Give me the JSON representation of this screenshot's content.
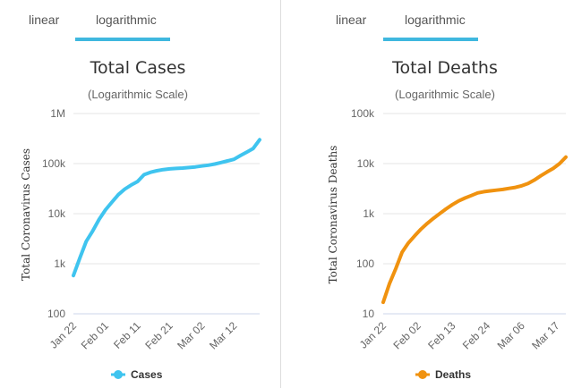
{
  "charts": [
    {
      "id": "cases",
      "tabs": [
        "linear",
        "logarithmic"
      ],
      "active_tab": 1,
      "legend_label": "Cases",
      "color": "#3fc4ef"
    },
    {
      "id": "deaths",
      "tabs": [
        "linear",
        "logarithmic"
      ],
      "active_tab": 1,
      "legend_label": "Deaths",
      "color": "#f0920f"
    }
  ],
  "chart_data": [
    {
      "type": "line",
      "title": "Total Cases",
      "subtitle": "(Logarithmic Scale)",
      "ylabel": "Total Coronavirus Cases",
      "xlabel": "",
      "yscale": "log",
      "ylim": [
        100,
        1000000
      ],
      "yticks": [
        100,
        1000,
        10000,
        100000,
        1000000
      ],
      "ytick_labels": [
        "100",
        "1k",
        "10k",
        "100k",
        "1M"
      ],
      "x_range_days": [
        0,
        58
      ],
      "x_ticks_days": [
        0,
        10,
        20,
        30,
        40,
        50
      ],
      "x_tick_labels": [
        "Jan 22",
        "Feb 01",
        "Feb 11",
        "Feb 21",
        "Mar 02",
        "Mar 12"
      ],
      "legend": "bottom-center",
      "series": [
        {
          "name": "Cases",
          "x": [
            0,
            2,
            4,
            6,
            8,
            10,
            12,
            14,
            16,
            18,
            19,
            20,
            22,
            24,
            26,
            28,
            30,
            32,
            34,
            36,
            38,
            40,
            42,
            44,
            46,
            48,
            50,
            52,
            54,
            56,
            58
          ],
          "y": [
            580,
            1300,
            2800,
            4500,
            7700,
            12000,
            17000,
            24000,
            31000,
            37500,
            40500,
            44000,
            60000,
            67000,
            72000,
            76000,
            78500,
            80000,
            81500,
            83500,
            86000,
            89500,
            93000,
            98000,
            105000,
            113000,
            122000,
            145000,
            170000,
            200000,
            300000
          ]
        }
      ]
    },
    {
      "type": "line",
      "title": "Total Deaths",
      "subtitle": "(Logarithmic Scale)",
      "ylabel": "Total Coronavirus Deaths",
      "xlabel": "",
      "yscale": "log",
      "ylim": [
        10,
        100000
      ],
      "yticks": [
        10,
        100,
        1000,
        10000,
        100000
      ],
      "ytick_labels": [
        "10",
        "100",
        "1k",
        "10k",
        "100k"
      ],
      "x_range_days": [
        0,
        58
      ],
      "x_ticks_days": [
        0,
        11,
        22,
        33,
        44,
        55
      ],
      "x_tick_labels": [
        "Jan 22",
        "Feb 02",
        "Feb 13",
        "Feb 24",
        "Mar 06",
        "Mar 17"
      ],
      "legend": "bottom-center",
      "series": [
        {
          "name": "Deaths",
          "x": [
            0,
            2,
            4,
            6,
            8,
            10,
            12,
            14,
            16,
            18,
            20,
            22,
            24,
            26,
            28,
            30,
            32,
            34,
            36,
            38,
            40,
            42,
            44,
            46,
            48,
            50,
            52,
            54,
            56,
            58
          ],
          "y": [
            17,
            40,
            80,
            170,
            260,
            360,
            490,
            640,
            810,
            1010,
            1250,
            1520,
            1800,
            2050,
            2300,
            2600,
            2750,
            2850,
            2950,
            3050,
            3200,
            3350,
            3600,
            4000,
            4700,
            5700,
            6800,
            8000,
            10000,
            13500
          ]
        }
      ]
    }
  ]
}
